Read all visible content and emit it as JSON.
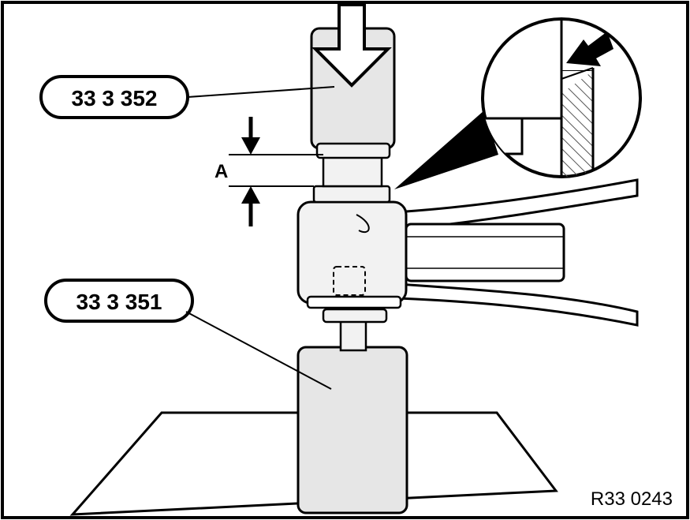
{
  "diagram": {
    "callouts": {
      "tool_upper": "33 3 352",
      "tool_lower": "33 3 351"
    },
    "dimension_label": "A",
    "reference_code": "R33 0243"
  },
  "colors": {
    "line": "#000000",
    "tool_fill": "#e6e6e6",
    "metal_fill": "#f2f2f2",
    "hatch": "#555555",
    "background": "#ffffff"
  }
}
